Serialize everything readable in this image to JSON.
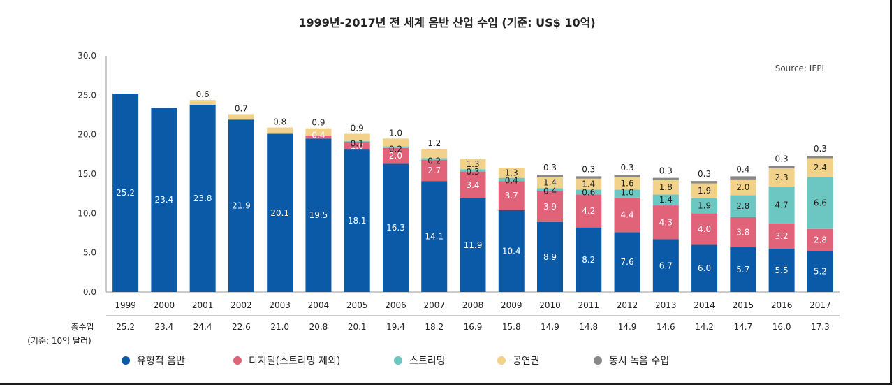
{
  "chart_data": {
    "type": "bar",
    "stacked": true,
    "title": "1999년-2017년 전 세계 음반 산업 수입 (기준: US$ 10억)",
    "source": "Source: IFPI",
    "ylim": [
      0,
      30
    ],
    "yticks": [
      "0.0",
      "5.0",
      "10.0",
      "15.0",
      "20.0",
      "25.0",
      "30.0"
    ],
    "categories": [
      "1999",
      "2000",
      "2001",
      "2002",
      "2003",
      "2004",
      "2005",
      "2006",
      "2007",
      "2008",
      "2009",
      "2010",
      "2011",
      "2012",
      "2013",
      "2014",
      "2015",
      "2016",
      "2017"
    ],
    "series": [
      {
        "name": "유형적 음반",
        "color": "#0a5aa8",
        "values": [
          25.2,
          23.4,
          23.8,
          21.9,
          20.1,
          19.5,
          18.1,
          16.3,
          14.1,
          11.9,
          10.4,
          8.9,
          8.2,
          7.6,
          6.7,
          6.0,
          5.7,
          5.5,
          5.2
        ]
      },
      {
        "name": "디지털(스트리밍 제외)",
        "color": "#e0637a",
        "values": [
          null,
          null,
          null,
          null,
          null,
          0.4,
          1.0,
          2.0,
          2.7,
          3.4,
          3.7,
          3.9,
          4.2,
          4.4,
          4.3,
          4.0,
          3.8,
          3.2,
          2.8
        ]
      },
      {
        "name": "스트리밍",
        "color": "#6cc7c2",
        "values": [
          null,
          null,
          null,
          null,
          null,
          null,
          0.1,
          0.2,
          0.2,
          0.3,
          0.4,
          0.4,
          0.6,
          1.0,
          1.4,
          1.9,
          2.8,
          4.7,
          6.6
        ]
      },
      {
        "name": "공연권",
        "color": "#f2d28a",
        "values": [
          null,
          null,
          0.6,
          0.7,
          0.8,
          0.9,
          0.9,
          1.0,
          1.2,
          1.3,
          1.3,
          1.4,
          1.4,
          1.6,
          1.8,
          1.9,
          2.0,
          2.3,
          2.4
        ]
      },
      {
        "name": "동시 녹음 수입",
        "color": "#888888",
        "values": [
          null,
          null,
          null,
          null,
          null,
          null,
          null,
          null,
          null,
          null,
          null,
          0.3,
          0.3,
          0.3,
          0.3,
          0.3,
          0.4,
          0.3,
          0.3
        ]
      }
    ],
    "totals": [
      "25.2",
      "23.4",
      "24.4",
      "22.6",
      "21.0",
      "20.8",
      "20.1",
      "19.4",
      "18.2",
      "16.9",
      "15.8",
      "14.9",
      "14.8",
      "14.9",
      "14.6",
      "14.2",
      "14.7",
      "16.0",
      "17.3"
    ],
    "totals_label_line1": "총수입",
    "totals_label_line2": "(기준: 10억 달러)",
    "legend_position": "bottom"
  }
}
